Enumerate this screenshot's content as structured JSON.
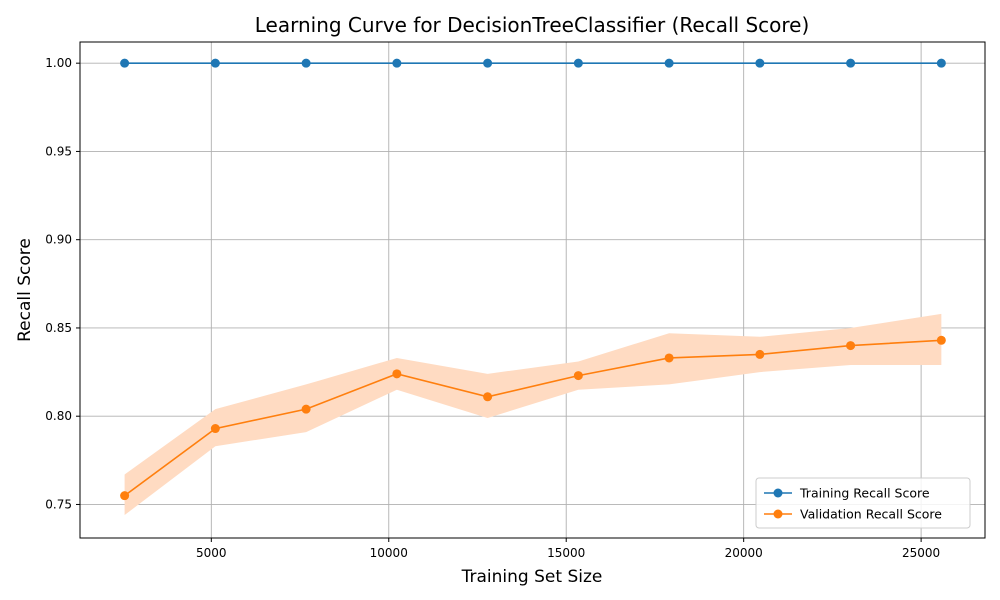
{
  "chart_data": {
    "type": "line",
    "title": "Learning Curve for DecisionTreeClassifier (Recall Score)",
    "xlabel": "Training Set Size",
    "ylabel": "Recall Score",
    "xlim": [
      1300,
      26800
    ],
    "ylim": [
      0.731,
      1.012
    ],
    "xticks": [
      5000,
      10000,
      15000,
      20000,
      25000
    ],
    "yticks": [
      0.75,
      0.8,
      0.85,
      0.9,
      0.95,
      1.0
    ],
    "grid": true,
    "legend_position": "lower-right",
    "x": [
      2557,
      5114,
      7671,
      10228,
      12785,
      15342,
      17899,
      20456,
      23013,
      25570
    ],
    "series": [
      {
        "name": "Training Recall Score",
        "color": "#1f77b4",
        "marker": "circle",
        "values": [
          1.0,
          1.0,
          1.0,
          1.0,
          1.0,
          1.0,
          1.0,
          1.0,
          1.0,
          1.0
        ]
      },
      {
        "name": "Validation Recall Score",
        "color": "#ff7f0e",
        "marker": "circle",
        "values": [
          0.755,
          0.793,
          0.804,
          0.824,
          0.811,
          0.823,
          0.833,
          0.835,
          0.84,
          0.843
        ],
        "band_lower": [
          0.744,
          0.783,
          0.791,
          0.815,
          0.799,
          0.815,
          0.818,
          0.825,
          0.829,
          0.829
        ],
        "band_upper": [
          0.767,
          0.804,
          0.818,
          0.833,
          0.824,
          0.831,
          0.847,
          0.845,
          0.85,
          0.858
        ],
        "band_color": "#ffdbc2"
      }
    ]
  }
}
